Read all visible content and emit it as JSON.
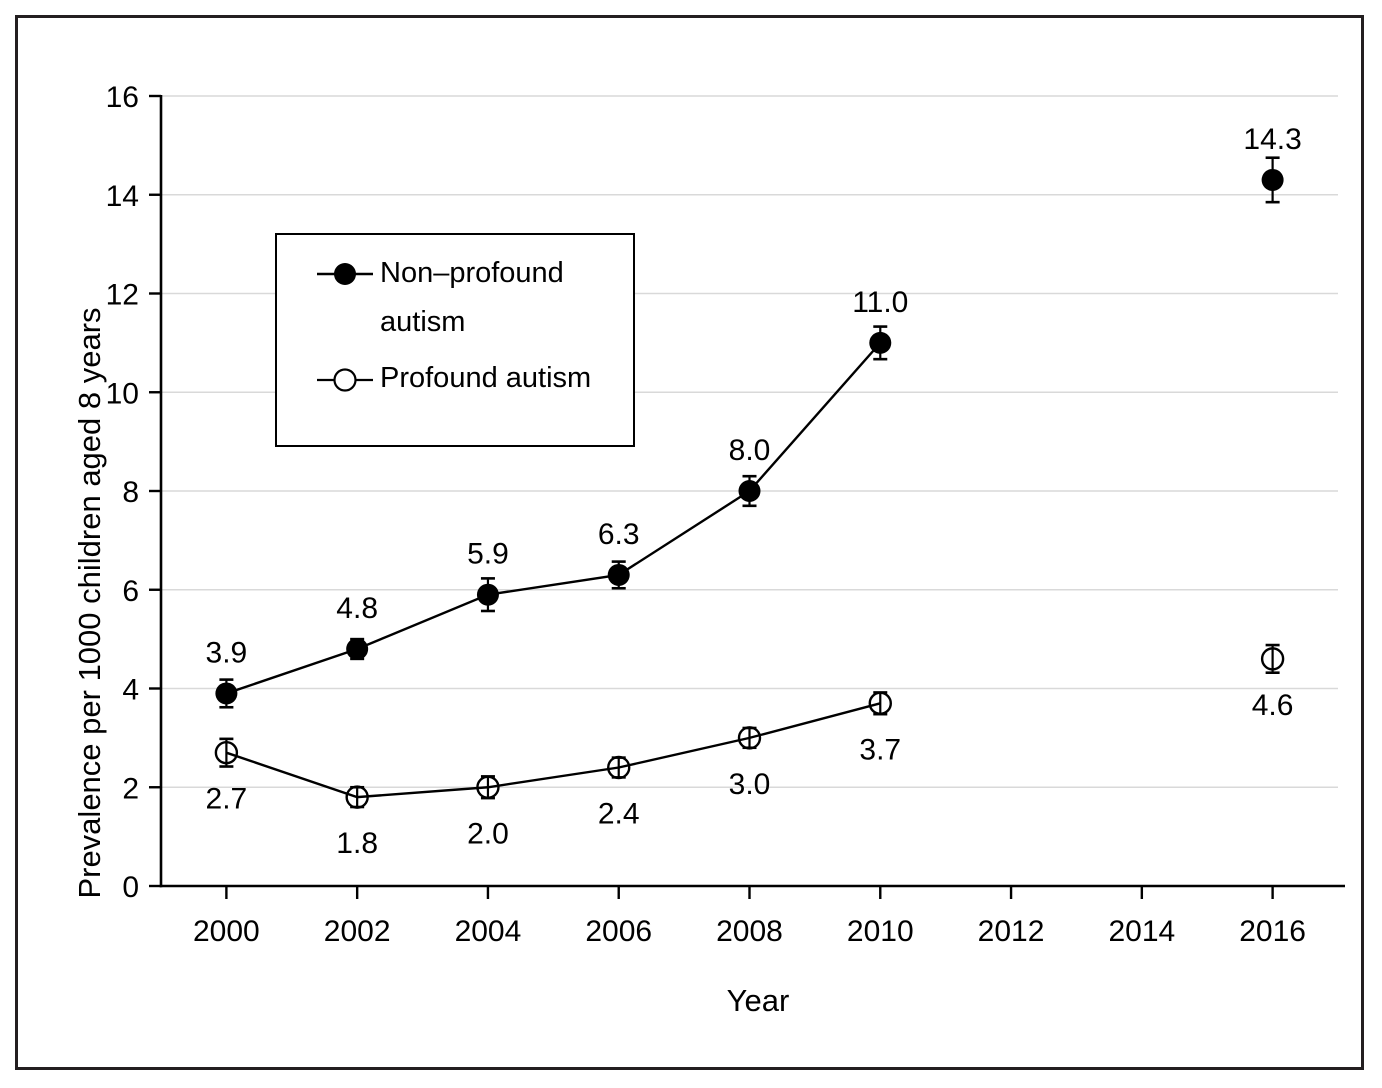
{
  "figure": {
    "background": "#ffffff",
    "border_color": "#231f20"
  },
  "chart_data": {
    "type": "line",
    "title": "",
    "xlabel": "Year",
    "ylabel": "Prevalence per 1000 children aged 8 years",
    "xlim": [
      1999,
      2017
    ],
    "ylim": [
      0,
      16
    ],
    "x_ticks": [
      2000,
      2002,
      2004,
      2006,
      2008,
      2010,
      2012,
      2014,
      2016
    ],
    "y_ticks": [
      0,
      2,
      4,
      6,
      8,
      10,
      12,
      14,
      16
    ],
    "grid": "horizontal",
    "grid_color": "#d9d9d9",
    "axis_color": "#000000",
    "text_color": "#000000",
    "legend": {
      "position": "upper-left-inside",
      "entries": [
        "Non–profound autism",
        "Profound autism"
      ]
    },
    "series": [
      {
        "name": "Non–profound autism",
        "marker": "filled-circle",
        "color": "#000000",
        "label_position": "above",
        "connected_points": 6,
        "x": [
          2000,
          2002,
          2004,
          2006,
          2008,
          2010,
          2016
        ],
        "y": [
          3.9,
          4.8,
          5.9,
          6.3,
          8.0,
          11.0,
          14.3
        ],
        "labels": [
          "3.9",
          "4.8",
          "5.9",
          "6.3",
          "8.0",
          "11.0",
          "14.3"
        ],
        "error": [
          0.28,
          0.2,
          0.33,
          0.27,
          0.3,
          0.33,
          0.45
        ]
      },
      {
        "name": "Profound autism",
        "marker": "open-circle",
        "color": "#000000",
        "label_position": "below",
        "connected_points": 6,
        "x": [
          2000,
          2002,
          2004,
          2006,
          2008,
          2010,
          2016
        ],
        "y": [
          2.7,
          1.8,
          2.0,
          2.4,
          3.0,
          3.7,
          4.6
        ],
        "labels": [
          "2.7",
          "1.8",
          "2.0",
          "2.4",
          "3.0",
          "3.7",
          "4.6"
        ],
        "error": [
          0.28,
          0.2,
          0.22,
          0.2,
          0.2,
          0.22,
          0.28
        ]
      }
    ]
  }
}
